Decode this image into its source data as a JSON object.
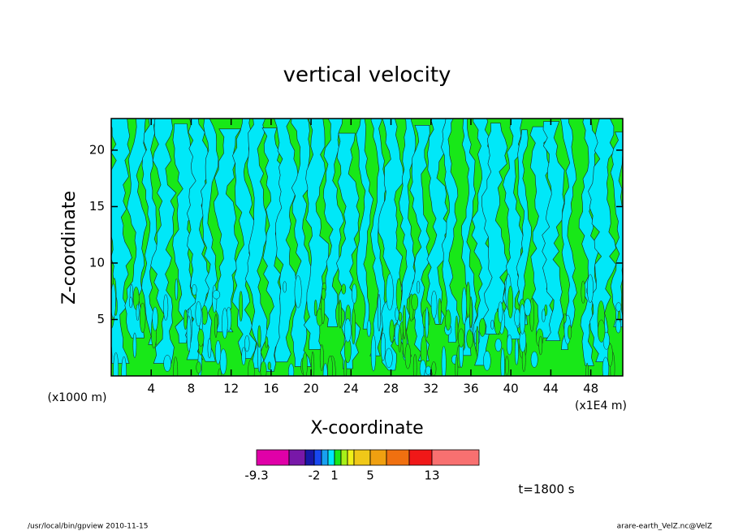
{
  "chart_data": {
    "type": "contour",
    "title": "vertical velocity",
    "xlabel": "X-coordinate",
    "ylabel": "Z-coordinate",
    "xunit": "(x1E4 m)",
    "yunit": "(x1000 m)",
    "xlim": [
      0,
      51.2
    ],
    "ylim": [
      0,
      22.8
    ],
    "xticks": [
      4,
      8,
      12,
      16,
      20,
      24,
      28,
      32,
      36,
      40,
      44,
      48
    ],
    "yticks": [
      5,
      10,
      15,
      20
    ],
    "colorbar": {
      "levels": [
        -9.3,
        -5,
        -3,
        -2,
        -1,
        0,
        1,
        2,
        3,
        4,
        5,
        7,
        10,
        13
      ],
      "colors": [
        "#e000a8",
        "#7818a8",
        "#1818a8",
        "#1848f0",
        "#18a0f0",
        "#00e8f8",
        "#18e818",
        "#a8f018",
        "#f0f018",
        "#f0c818",
        "#f0a010",
        "#f07010",
        "#f01818",
        "#f87070",
        "#f8b8b8"
      ],
      "ticks": [
        -9.3,
        -2,
        1,
        5,
        13
      ]
    },
    "annotation": "t=1800 s",
    "footer_left": "/usr/local/bin/gpview  2010-11-15",
    "footer_right": "arare-earth_VelZ.nc@VelZ"
  }
}
